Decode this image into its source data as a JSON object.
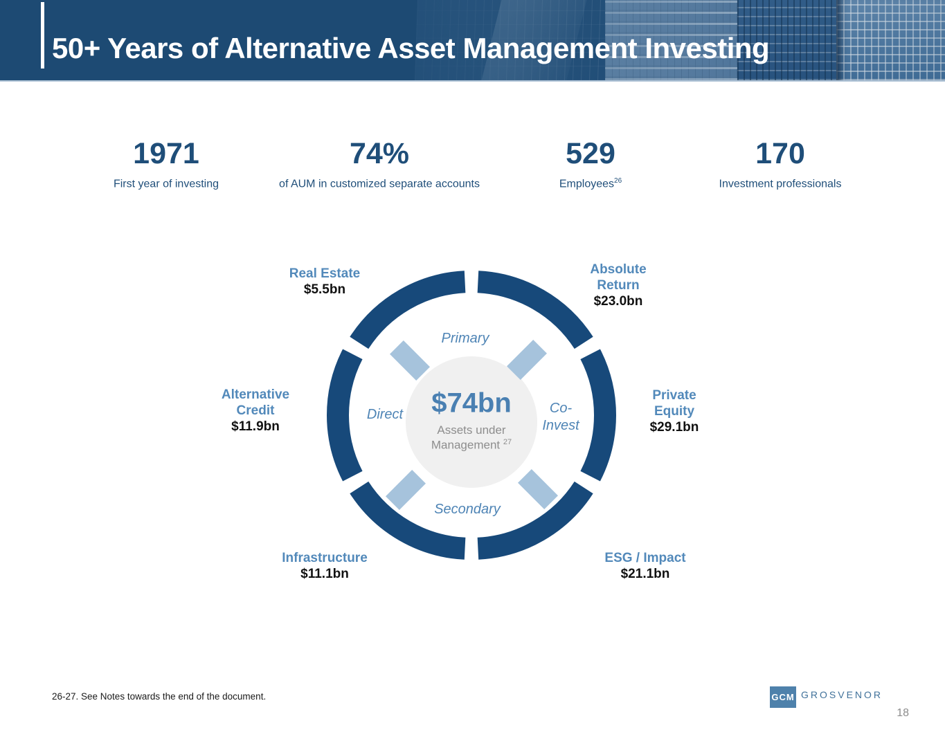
{
  "slide": {
    "title": "50+ Years of Alternative Asset Management Investing",
    "footnote": "26-27. See Notes towards the end of the document.",
    "page_number": "18"
  },
  "stats": [
    {
      "value": "1971",
      "label": "First year of investing",
      "sup": ""
    },
    {
      "value": "74%",
      "label": "of AUM in customized separate accounts",
      "sup": ""
    },
    {
      "value": "529",
      "label": "Employees",
      "sup": "26"
    },
    {
      "value": "170",
      "label": "Investment professionals",
      "sup": ""
    }
  ],
  "wheel": {
    "center": {
      "value": "$74bn",
      "sub_line1": "Assets under",
      "sub_line2": "Management",
      "sub_sup": "27"
    },
    "inner_labels": [
      {
        "text": "Primary"
      },
      {
        "text": "Co-Invest"
      },
      {
        "text": "Secondary"
      },
      {
        "text": "Direct"
      }
    ],
    "segments": [
      {
        "name": "Absolute Return",
        "value": "$23.0bn",
        "start_deg": 30,
        "end_deg": 90
      },
      {
        "name": "Private Equity",
        "value": "$29.1bn",
        "start_deg": -30,
        "end_deg": 30
      },
      {
        "name": "ESG / Impact",
        "value": "$21.1bn",
        "start_deg": -90,
        "end_deg": -30
      },
      {
        "name": "Infrastructure",
        "value": "$11.1bn",
        "start_deg": 210,
        "end_deg": 270
      },
      {
        "name": "Alternative Credit",
        "value": "$11.9bn",
        "start_deg": 150,
        "end_deg": 210
      },
      {
        "name": "Real Estate",
        "value": "$5.5bn",
        "start_deg": 90,
        "end_deg": 150
      }
    ],
    "gap_half_deg": 2.8
  },
  "logo": {
    "box": "GCM",
    "text": "GROSVENOR"
  },
  "colors": {
    "banner_bg": "#1D4A73",
    "banner_line": "#AFC3D6",
    "stat_navy": "#1F4E79",
    "ring": "#17497A",
    "cat_label_blue": "#5289BA",
    "inner_label_blue": "#4E84B5",
    "center_value_blue": "#4A80B2",
    "center_circle": "#F0F0F0",
    "center_sub_gray": "#8D8D8D",
    "arrow_blue": "#A6C3DC",
    "value_black": "#111111",
    "logo_box": "#4E81AB",
    "logo_text": "#40719A",
    "page_gray": "#8C8C8C",
    "footnote_black": "#1A1A1A"
  }
}
